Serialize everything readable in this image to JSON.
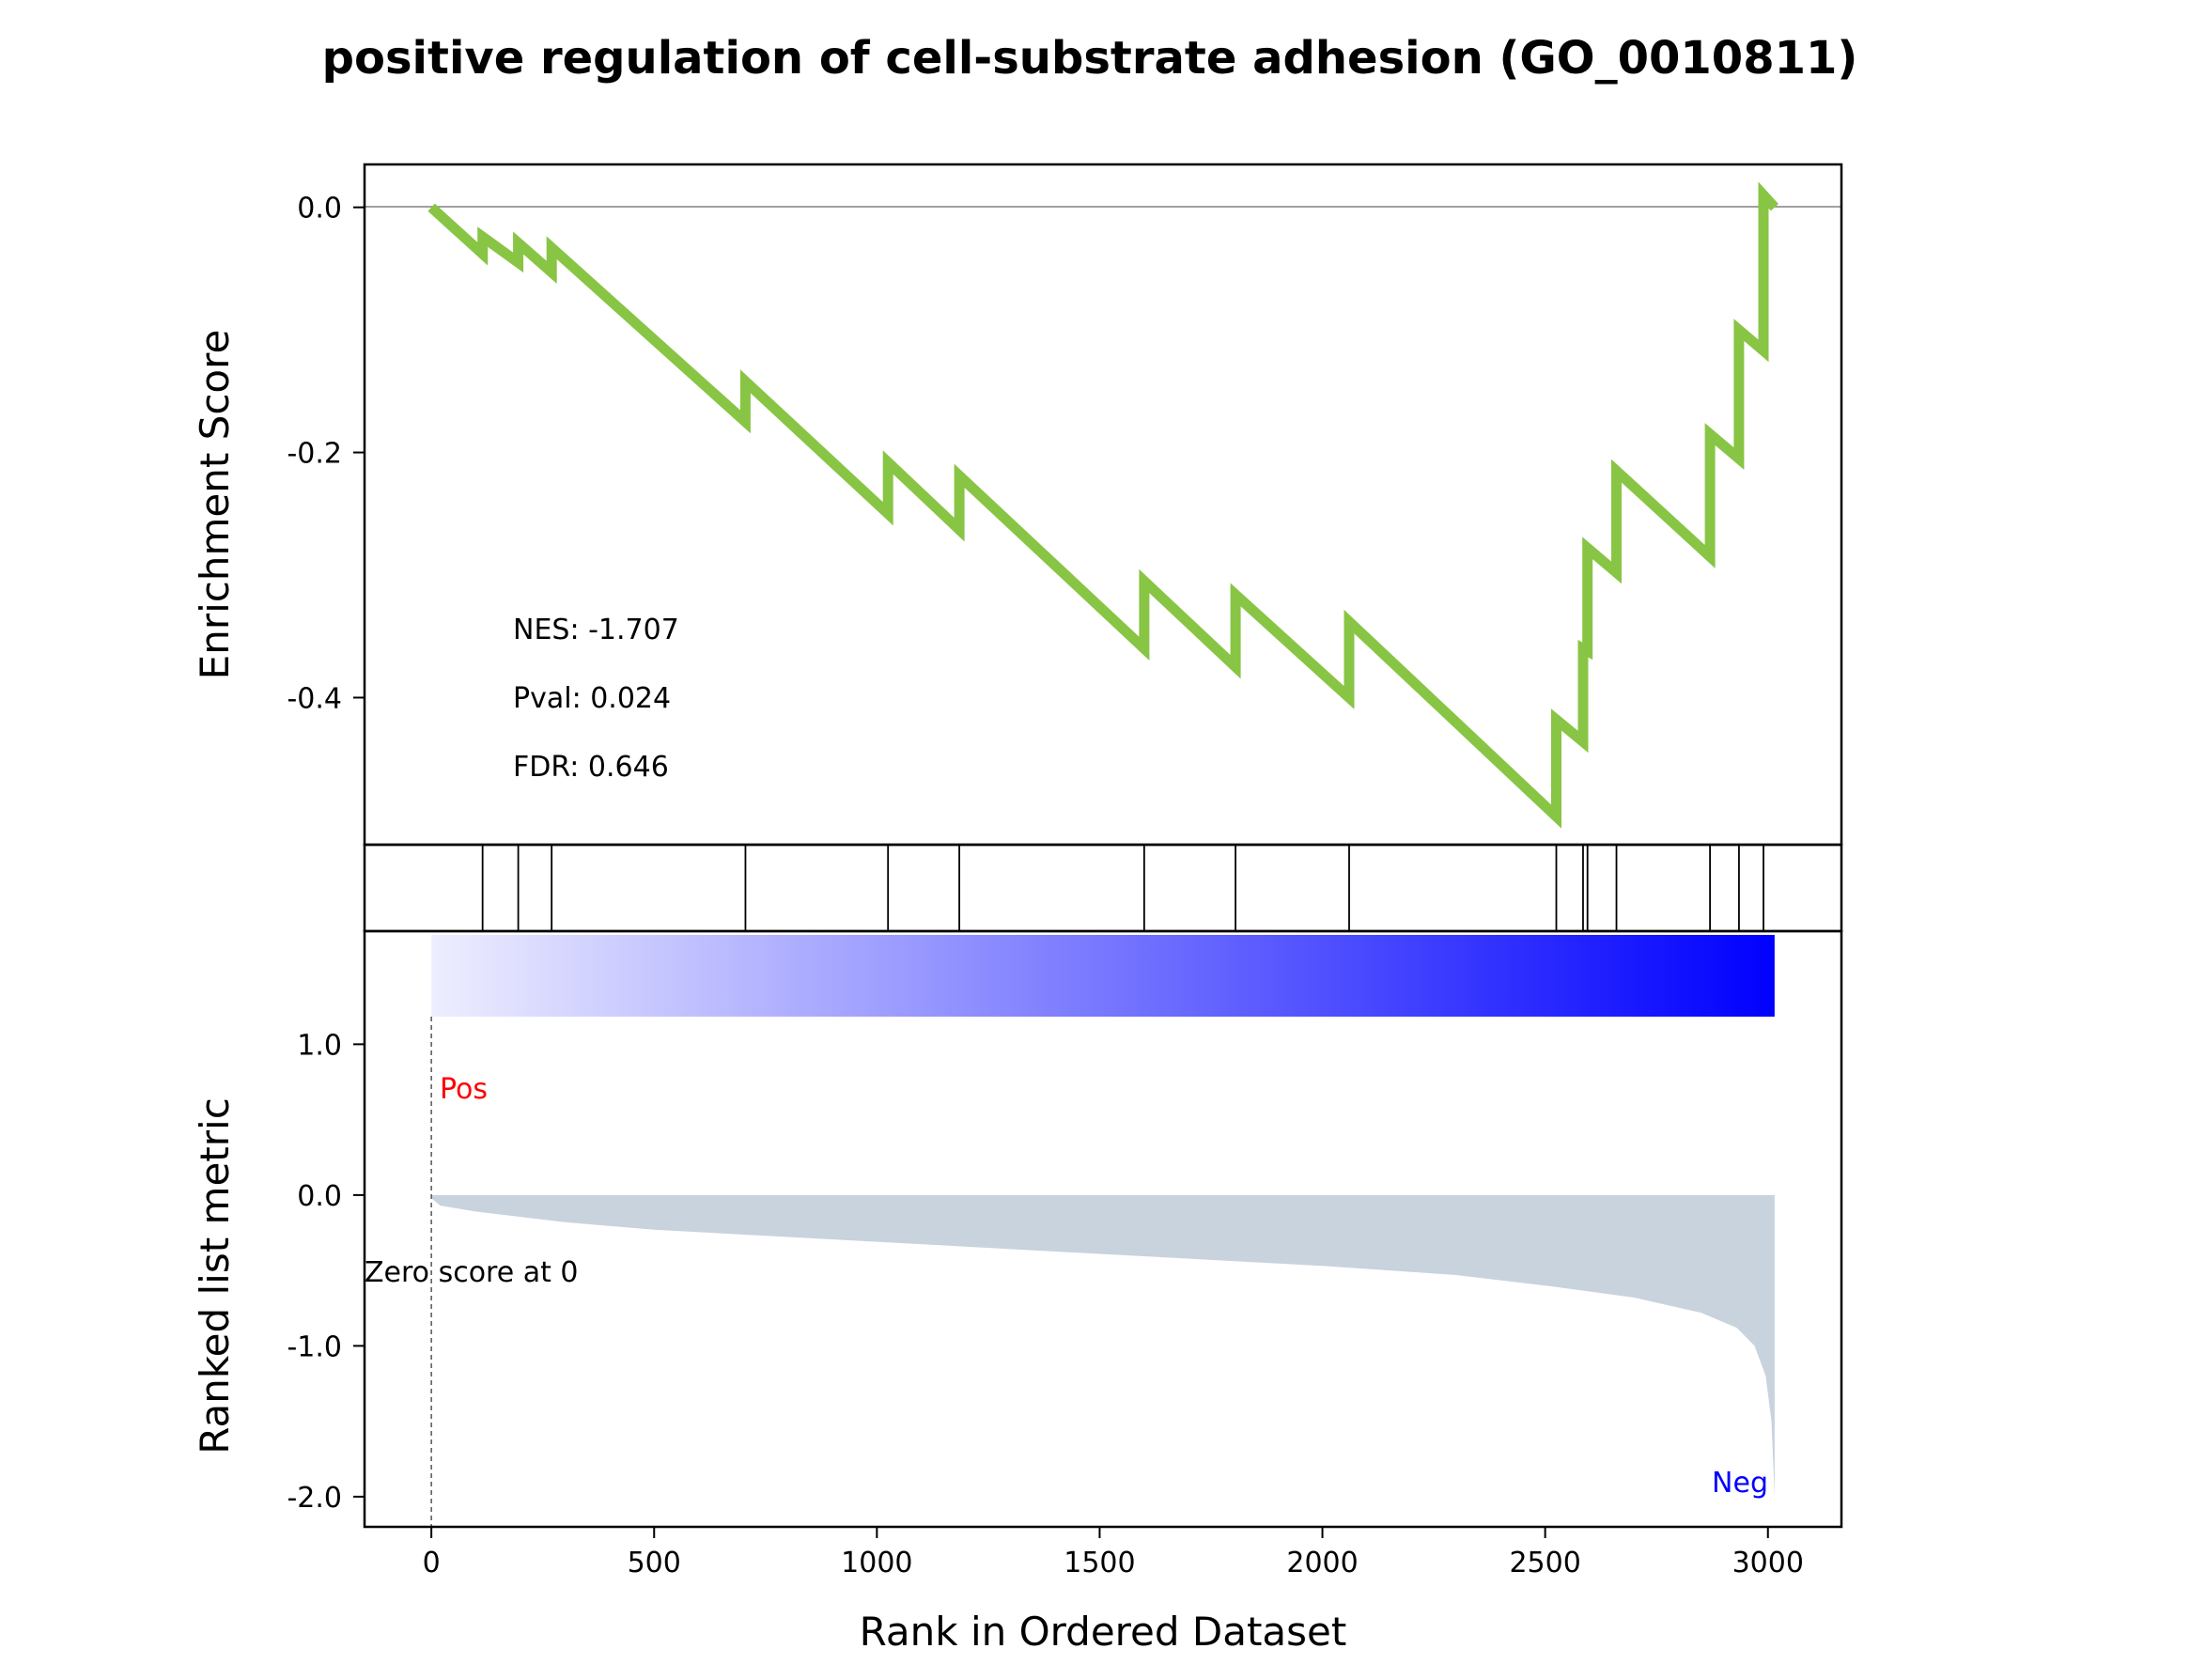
{
  "chart_data": {
    "type": "line",
    "title": "positive regulation of cell-substrate adhesion (GO_0010811)",
    "xlabel": "Rank in Ordered Dataset",
    "xlim": [
      -150,
      3165
    ],
    "x_ticks": [
      "0",
      "500",
      "1000",
      "1500",
      "2000",
      "2500",
      "3000"
    ],
    "x_tick_values": [
      0,
      500,
      1000,
      1500,
      2000,
      2500,
      3000
    ],
    "enrichment": {
      "ylabel": "Enrichment Score",
      "ylim": [
        -0.52,
        0.035
      ],
      "y_ticks": [
        "0.0",
        "-0.2",
        "-0.4"
      ],
      "y_tick_values": [
        0.0,
        -0.2,
        -0.4
      ],
      "color": "#88c544",
      "stats": {
        "nes": "NES: -1.707",
        "pval": "Pval: 0.024",
        "fdr": "FDR: 0.646"
      },
      "running_es": [
        [
          0,
          0.0
        ],
        [
          115,
          -0.038
        ],
        [
          115,
          -0.024
        ],
        [
          195,
          -0.045
        ],
        [
          195,
          -0.029
        ],
        [
          270,
          -0.053
        ],
        [
          270,
          -0.033
        ],
        [
          705,
          -0.175
        ],
        [
          705,
          -0.142
        ],
        [
          1025,
          -0.25
        ],
        [
          1025,
          -0.208
        ],
        [
          1185,
          -0.263
        ],
        [
          1185,
          -0.219
        ],
        [
          1600,
          -0.36
        ],
        [
          1600,
          -0.305
        ],
        [
          1805,
          -0.375
        ],
        [
          1805,
          -0.316
        ],
        [
          2060,
          -0.4
        ],
        [
          2060,
          -0.338
        ],
        [
          2525,
          -0.497
        ],
        [
          2525,
          -0.418
        ],
        [
          2585,
          -0.436
        ],
        [
          2585,
          -0.36
        ],
        [
          2595,
          -0.362
        ],
        [
          2595,
          -0.278
        ],
        [
          2660,
          -0.298
        ],
        [
          2660,
          -0.215
        ],
        [
          2870,
          -0.285
        ],
        [
          2870,
          -0.185
        ],
        [
          2935,
          -0.205
        ],
        [
          2935,
          -0.1
        ],
        [
          2990,
          -0.117
        ],
        [
          2990,
          0.01
        ],
        [
          3015,
          0.0
        ]
      ]
    },
    "hits": [
      115,
      195,
      270,
      705,
      1025,
      1185,
      1600,
      1805,
      2060,
      2525,
      2585,
      2595,
      2660,
      2870,
      2935,
      2990
    ],
    "ranked": {
      "ylabel": "Ranked list metric",
      "ylim": [
        -2.2,
        1.75
      ],
      "y_ticks": [
        "1.0",
        "0.0",
        "-1.0",
        "-2.0"
      ],
      "y_tick_values": [
        1.0,
        0.0,
        -1.0,
        -2.0
      ],
      "n": 3015,
      "fill_color": "#c8d3dd",
      "metric_curve": [
        [
          0,
          -0.02
        ],
        [
          20,
          -0.07
        ],
        [
          100,
          -0.11
        ],
        [
          300,
          -0.18
        ],
        [
          500,
          -0.23
        ],
        [
          1000,
          -0.31
        ],
        [
          1500,
          -0.39
        ],
        [
          2000,
          -0.47
        ],
        [
          2300,
          -0.53
        ],
        [
          2500,
          -0.6
        ],
        [
          2700,
          -0.68
        ],
        [
          2850,
          -0.78
        ],
        [
          2930,
          -0.88
        ],
        [
          2970,
          -1.0
        ],
        [
          2995,
          -1.2
        ],
        [
          3008,
          -1.5
        ],
        [
          3015,
          -2.0
        ]
      ],
      "pos_label": "Pos",
      "pos_color": "#ff0000",
      "neg_label": "Neg",
      "neg_color": "#0000ff",
      "zero_label": "Zero score at 0",
      "zero_rank": 0,
      "gradient": [
        "#eeeeff",
        "#0000ff"
      ]
    }
  }
}
